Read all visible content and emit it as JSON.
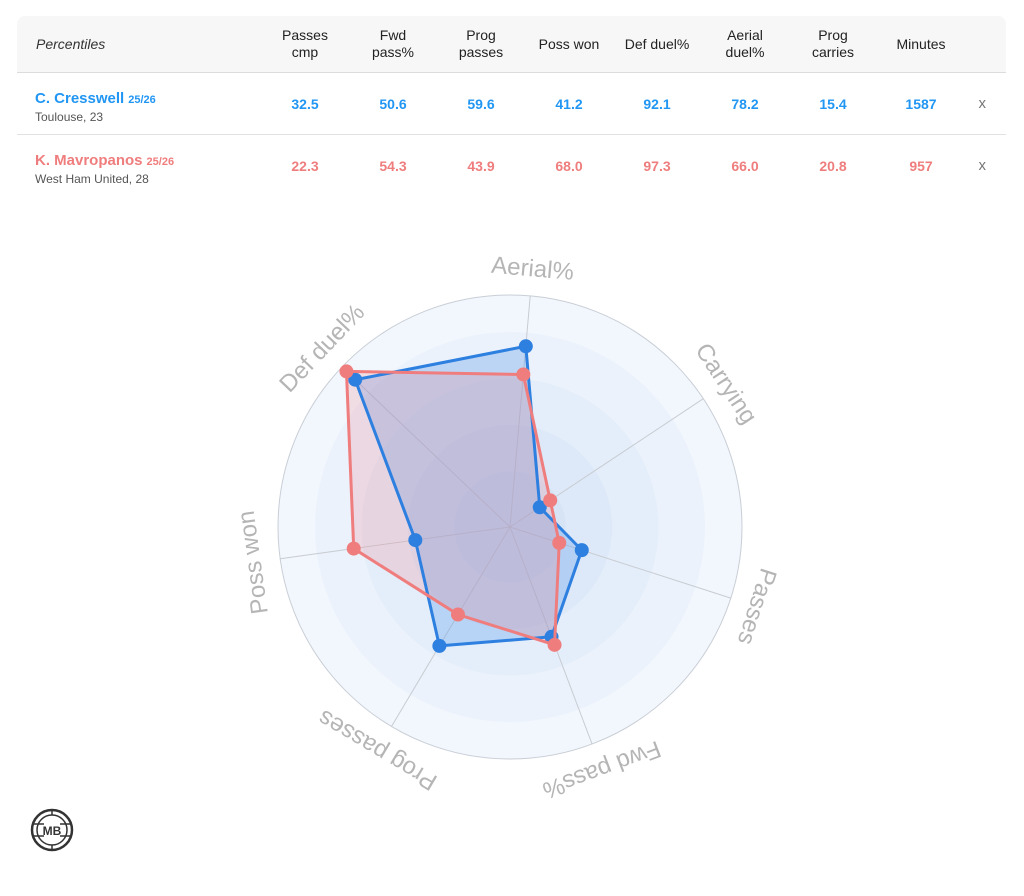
{
  "table": {
    "title": "Percentiles",
    "columns": [
      "Passes\ncmp",
      "Fwd\npass%",
      "Prog\npasses",
      "Poss won",
      "Def duel%",
      "Aerial\nduel%",
      "Prog\ncarries",
      "Minutes"
    ],
    "remove_label": "x",
    "players": [
      {
        "name": "C. Cresswell",
        "season": "25/26",
        "sub": "Toulouse, 23",
        "values": [
          "32.5",
          "50.6",
          "59.6",
          "41.2",
          "92.1",
          "78.2",
          "15.4",
          "1587"
        ],
        "color": "#2196f3"
      },
      {
        "name": "K. Mavropanos",
        "season": "25/26",
        "sub": "West Ham United, 28",
        "values": [
          "22.3",
          "54.3",
          "43.9",
          "68.0",
          "97.3",
          "66.0",
          "20.8",
          "957"
        ],
        "color": "#ef7d7d"
      }
    ]
  },
  "chart_data": {
    "type": "radar",
    "axes": [
      "Aerial%",
      "Carrying",
      "Passes",
      "Fwd pass%",
      "Prog passes",
      "Poss won",
      "Def duel%"
    ],
    "range": [
      0,
      100
    ],
    "series": [
      {
        "name": "C. Cresswell",
        "values": [
          78.2,
          15.4,
          32.5,
          50.6,
          59.6,
          41.2,
          92.1
        ],
        "color": "#2d7fe0"
      },
      {
        "name": "K. Mavropanos",
        "values": [
          66.0,
          20.8,
          22.3,
          54.3,
          43.9,
          68.0,
          97.3
        ],
        "color": "#ef7d7d"
      }
    ]
  },
  "logo": {
    "text": "MB"
  }
}
